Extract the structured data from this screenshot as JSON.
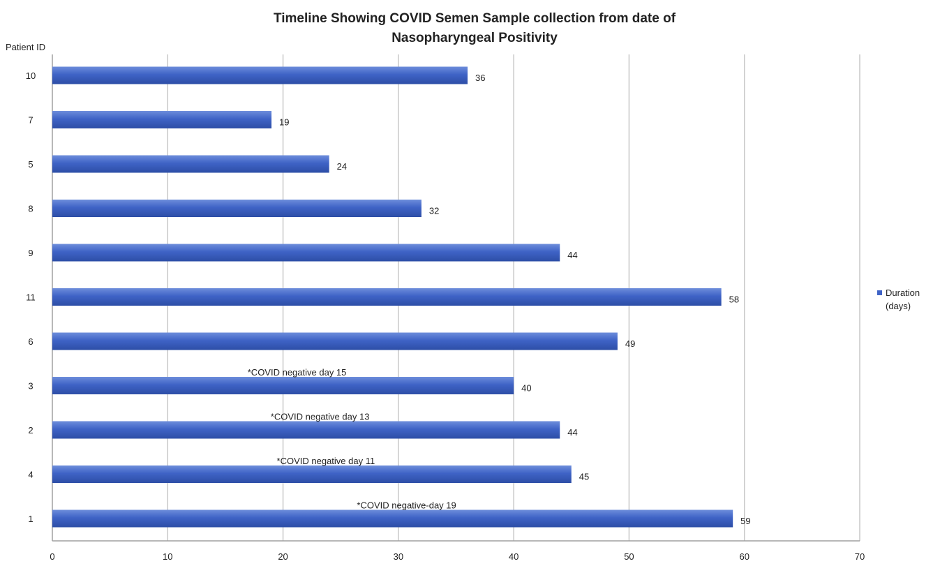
{
  "chart_data": {
    "type": "bar",
    "orientation": "horizontal",
    "title_lines": [
      "Timeline Showing COVID Semen Sample collection from date of",
      "Nasopharyngeal Positivity"
    ],
    "ylabel": "Patient ID",
    "xlabel": "",
    "xlim": [
      0,
      70
    ],
    "x_ticks": [
      0,
      10,
      20,
      30,
      40,
      50,
      60,
      70
    ],
    "grid": "vertical",
    "legend_position": "right",
    "categories": [
      "10",
      "7",
      "5",
      "8",
      "9",
      "11",
      "6",
      "3",
      "2",
      "4",
      "1"
    ],
    "series": [
      {
        "name": "Duration (days)",
        "name_lines": [
          "Duration",
          "(days)"
        ],
        "color": "#3f63c6",
        "values": [
          36,
          19,
          24,
          32,
          44,
          58,
          49,
          40,
          44,
          45,
          59
        ]
      }
    ],
    "annotations": [
      {
        "category": "3",
        "text": "*COVID negative day 15"
      },
      {
        "category": "2",
        "text": "*COVID negative day 13"
      },
      {
        "category": "4",
        "text": "*COVID negative day 11"
      },
      {
        "category": "1",
        "text": "*COVID negative-day 19"
      }
    ],
    "colors": {
      "bar": "#3f63c6",
      "bar_highlight": "#6d8ddb",
      "bar_shadow": "#2d4ea6",
      "grid": "#c8c8c8",
      "axis": "#a0a0a0"
    }
  }
}
